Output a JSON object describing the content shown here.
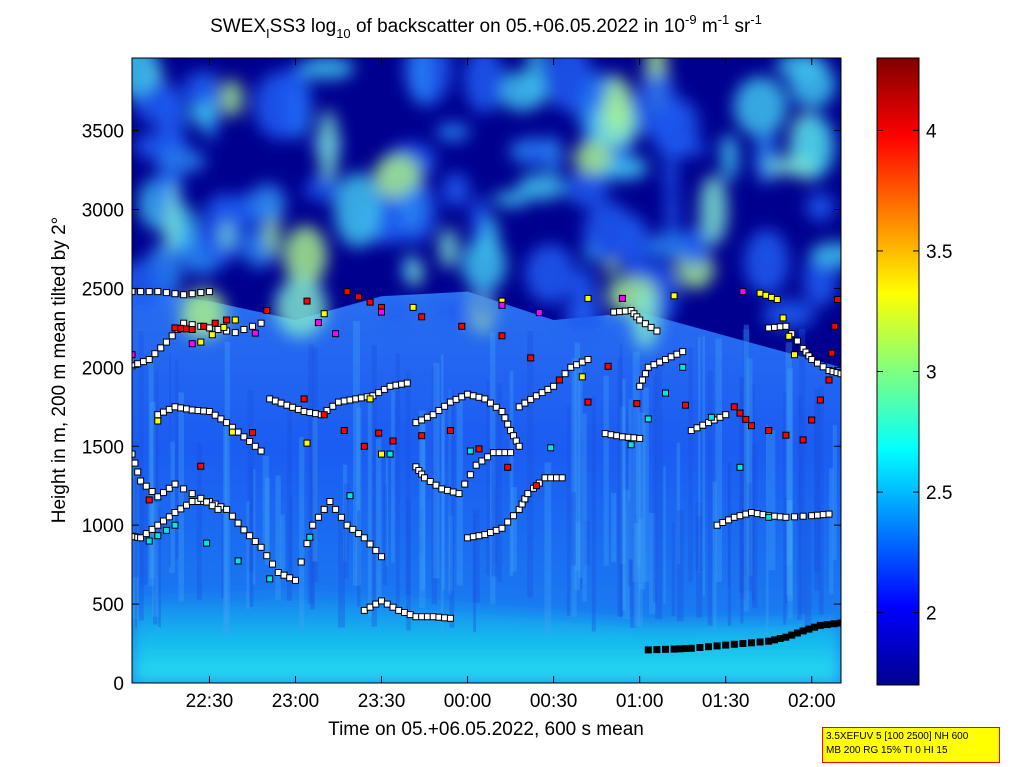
{
  "chart_data": {
    "type": "heatmap",
    "title": {
      "prefix": "SWEX",
      "sub1": "I",
      "mid": "SS3 log",
      "sub2": "10",
      "tail": " of backscatter on 05.+06.05.2022 in 10",
      "sup1": "-9",
      "unit_m": " m",
      "sup2": "-1",
      "unit_sr": " sr",
      "sup3": "-1"
    },
    "xlabel": "Time on 05.+06.05.2022, 600 s mean",
    "ylabel": "Height in m, 200 m mean tilted by 2°",
    "x_ticks": [
      "22:30",
      "23:00",
      "23:30",
      "00:00",
      "00:30",
      "01:00",
      "01:30",
      "02:00"
    ],
    "x_tick_hours": [
      22.5,
      23.0,
      23.5,
      24.0,
      24.5,
      25.0,
      25.5,
      26.0
    ],
    "xlim_hours": [
      22.05,
      26.17
    ],
    "y_ticks": [
      0,
      500,
      1000,
      1500,
      2000,
      2500,
      3000,
      3500
    ],
    "ylim": [
      0,
      3960
    ],
    "colorbar": {
      "ticks": [
        2,
        2.5,
        3,
        3.5,
        4
      ],
      "range": [
        1.7,
        4.3
      ],
      "colormap": "jet"
    },
    "field_description": {
      "surface_layer_top_m": [
        [
          22.05,
          520
        ],
        [
          23.0,
          560
        ],
        [
          24.0,
          480
        ],
        [
          25.0,
          380
        ],
        [
          26.17,
          400
        ]
      ],
      "aerosol_layer_top_m": [
        [
          22.05,
          2480
        ],
        [
          22.5,
          2420
        ],
        [
          23.0,
          2300
        ],
        [
          23.5,
          2450
        ],
        [
          24.0,
          2480
        ],
        [
          24.5,
          2300
        ],
        [
          25.0,
          2350
        ],
        [
          25.5,
          2200
        ],
        [
          26.17,
          2000
        ]
      ]
    },
    "series": [
      {
        "kind": "detected-layer-points",
        "layers": [
          {
            "color": "#000000",
            "points": [
              [
                25.05,
                210
              ],
              [
                25.2,
                215
              ],
              [
                25.3,
                220
              ],
              [
                25.45,
                235
              ],
              [
                25.6,
                250
              ],
              [
                25.75,
                265
              ],
              [
                25.85,
                290
              ],
              [
                25.95,
                330
              ],
              [
                26.05,
                365
              ],
              [
                26.17,
                380
              ]
            ]
          },
          {
            "color": "#ffffff",
            "points": [
              [
                22.05,
                930
              ],
              [
                22.1,
                920
              ],
              [
                22.2,
                1000
              ],
              [
                22.3,
                1080
              ],
              [
                22.4,
                1150
              ],
              [
                22.5,
                1150
              ],
              [
                22.6,
                1100
              ],
              [
                22.7,
                970
              ],
              [
                22.8,
                860
              ],
              [
                22.9,
                700
              ],
              [
                23.0,
                650
              ],
              [
                23.1,
                1000
              ],
              [
                23.2,
                1150
              ],
              [
                23.3,
                1000
              ],
              [
                23.4,
                920
              ],
              [
                23.5,
                800
              ]
            ]
          },
          {
            "color": "#ffffff",
            "points": [
              [
                23.4,
                460
              ],
              [
                23.5,
                520
              ],
              [
                23.6,
                460
              ],
              [
                23.7,
                420
              ],
              [
                23.8,
                420
              ],
              [
                23.9,
                410
              ]
            ]
          },
          {
            "color": "#ffffff",
            "points": [
              [
                22.05,
                1450
              ],
              [
                22.1,
                1280
              ],
              [
                22.2,
                1180
              ],
              [
                22.3,
                1260
              ],
              [
                22.45,
                1170
              ],
              [
                22.55,
                1100
              ]
            ]
          },
          {
            "color": "#ffffff",
            "points": [
              [
                22.2,
                1700
              ],
              [
                22.3,
                1750
              ],
              [
                22.4,
                1730
              ],
              [
                22.5,
                1720
              ],
              [
                22.6,
                1650
              ],
              [
                22.7,
                1560
              ],
              [
                22.8,
                1470
              ]
            ]
          },
          {
            "color": "#ffffff",
            "points": [
              [
                22.05,
                2010
              ],
              [
                22.15,
                2050
              ],
              [
                22.25,
                2160
              ],
              [
                22.35,
                2280
              ],
              [
                22.5,
                2250
              ],
              [
                22.65,
                2220
              ],
              [
                22.8,
                2280
              ]
            ]
          },
          {
            "color": "#ffffff",
            "points": [
              [
                22.05,
                2480
              ],
              [
                22.2,
                2480
              ],
              [
                22.35,
                2460
              ],
              [
                22.5,
                2480
              ]
            ]
          },
          {
            "color": "#ffffff",
            "points": [
              [
                22.85,
                1800
              ],
              [
                22.95,
                1760
              ],
              [
                23.05,
                1720
              ],
              [
                23.15,
                1700
              ],
              [
                23.25,
                1780
              ],
              [
                23.35,
                1800
              ],
              [
                23.45,
                1820
              ],
              [
                23.55,
                1880
              ],
              [
                23.65,
                1900
              ]
            ]
          },
          {
            "color": "#ffffff",
            "points": [
              [
                23.7,
                1650
              ],
              [
                23.8,
                1700
              ],
              [
                23.9,
                1780
              ],
              [
                24.0,
                1830
              ],
              [
                24.1,
                1800
              ],
              [
                24.2,
                1720
              ],
              [
                24.25,
                1600
              ],
              [
                24.3,
                1500
              ]
            ]
          },
          {
            "color": "#ffffff",
            "points": [
              [
                23.7,
                1370
              ],
              [
                23.75,
                1300
              ],
              [
                23.85,
                1230
              ],
              [
                23.95,
                1200
              ],
              [
                24.05,
                1380
              ],
              [
                24.15,
                1460
              ],
              [
                24.25,
                1460
              ]
            ]
          },
          {
            "color": "#ffffff",
            "points": [
              [
                24.0,
                920
              ],
              [
                24.1,
                940
              ],
              [
                24.2,
                980
              ],
              [
                24.3,
                1100
              ],
              [
                24.35,
                1200
              ],
              [
                24.45,
                1300
              ],
              [
                24.55,
                1300
              ]
            ]
          },
          {
            "color": "#ffffff",
            "points": [
              [
                24.3,
                1750
              ],
              [
                24.4,
                1820
              ],
              [
                24.5,
                1880
              ],
              [
                24.6,
                2000
              ],
              [
                24.7,
                2050
              ]
            ]
          },
          {
            "color": "#ffffff",
            "points": [
              [
                24.8,
                1580
              ],
              [
                24.9,
                1560
              ],
              [
                25.0,
                1550
              ]
            ]
          },
          {
            "color": "#ffffff",
            "points": [
              [
                24.85,
                2350
              ],
              [
                24.95,
                2360
              ],
              [
                25.0,
                2300
              ],
              [
                25.1,
                2230
              ]
            ]
          },
          {
            "color": "#ffffff",
            "points": [
              [
                25.0,
                1880
              ],
              [
                25.05,
                2000
              ],
              [
                25.15,
                2050
              ],
              [
                25.25,
                2100
              ]
            ]
          },
          {
            "color": "#ffffff",
            "points": [
              [
                25.3,
                1600
              ],
              [
                25.4,
                1650
              ],
              [
                25.5,
                1700
              ]
            ]
          },
          {
            "color": "#ffffff",
            "points": [
              [
                25.45,
                1000
              ],
              [
                25.55,
                1050
              ],
              [
                25.65,
                1080
              ],
              [
                25.75,
                1060
              ],
              [
                25.85,
                1050
              ],
              [
                26.0,
                1060
              ],
              [
                26.1,
                1070
              ]
            ]
          },
          {
            "color": "#ffffff",
            "points": [
              [
                25.75,
                2250
              ],
              [
                25.85,
                2260
              ],
              [
                25.95,
                2120
              ],
              [
                26.0,
                2050
              ],
              [
                26.1,
                1980
              ],
              [
                26.17,
                1960
              ]
            ]
          },
          {
            "color": "#ff0000",
            "points": [
              [
                22.3,
                2250
              ],
              [
                22.4,
                2240
              ],
              [
                22.6,
                2300
              ],
              [
                23.3,
                2480
              ],
              [
                23.5,
                2380
              ],
              [
                24.2,
                2200
              ],
              [
                24.7,
                1780
              ],
              [
                25.55,
                1750
              ],
              [
                25.65,
                1630
              ],
              [
                25.95,
                1540
              ],
              [
                26.1,
                1920
              ],
              [
                26.15,
                2430
              ],
              [
                22.15,
                1160
              ],
              [
                23.05,
                1800
              ],
              [
                23.4,
                1500
              ],
              [
                23.9,
                1600
              ],
              [
                24.4,
                1250
              ]
            ]
          },
          {
            "color": "#ffff00",
            "points": [
              [
                22.45,
                2160
              ],
              [
                22.65,
                2300
              ],
              [
                24.2,
                2420
              ],
              [
                25.7,
                2470
              ],
              [
                25.8,
                2430
              ],
              [
                25.9,
                2080
              ],
              [
                22.2,
                1660
              ],
              [
                23.5,
                1450
              ]
            ]
          },
          {
            "color": "#ff00ff",
            "points": [
              [
                22.4,
                2150
              ],
              [
                23.5,
                2350
              ],
              [
                25.6,
                2480
              ],
              [
                22.05,
                2080
              ]
            ]
          },
          {
            "color": "#00e5e5",
            "points": [
              [
                22.15,
                900
              ],
              [
                22.3,
                1000
              ],
              [
                22.85,
                660
              ],
              [
                23.55,
                1450
              ],
              [
                24.95,
                1510
              ],
              [
                25.25,
                2000
              ],
              [
                25.75,
                1050
              ]
            ]
          }
        ]
      }
    ]
  },
  "info_box": {
    "line1": "3.5XEFUV 5 [100 2500] NH 600",
    "line2": "MB 200 RG 15% TI 0 HI 15"
  }
}
